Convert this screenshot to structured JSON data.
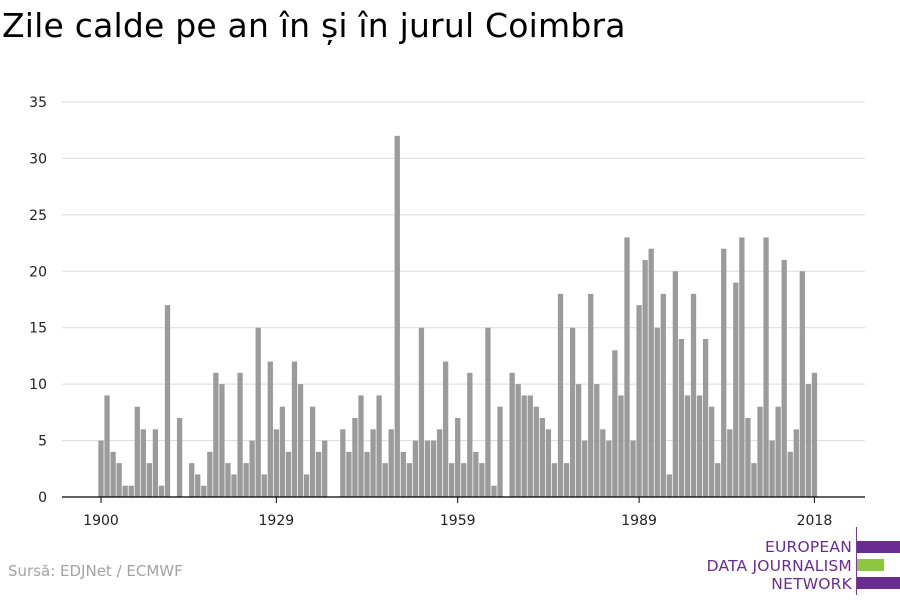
{
  "title": "Zile calde pe an în și în jurul Coimbra",
  "source": "Sursă: EDJNet / ECMWF",
  "logo": {
    "lines": [
      "EUROPEAN",
      "DATA JOURNALISM",
      "NETWORK"
    ],
    "colors": [
      "#6b2c91",
      "#8dc63f",
      "#6b2c91"
    ]
  },
  "chart_data": {
    "type": "bar",
    "title": "Zile calde pe an în și în jurul Coimbra",
    "xlabel": "",
    "ylabel": "",
    "x_start": 1900,
    "x_end": 2018,
    "xticks": [
      1900,
      1929,
      1959,
      1989,
      2018
    ],
    "yticks": [
      0,
      5,
      10,
      15,
      20,
      25,
      30,
      35
    ],
    "ylim": [
      0,
      35
    ],
    "grid": true,
    "bar_color": "#9b9b9b",
    "values": [
      5,
      9,
      4,
      3,
      1,
      1,
      8,
      6,
      3,
      6,
      1,
      17,
      0,
      7,
      0,
      3,
      2,
      1,
      4,
      11,
      10,
      3,
      2,
      11,
      3,
      5,
      15,
      2,
      12,
      6,
      8,
      4,
      12,
      10,
      2,
      8,
      4,
      5,
      0,
      0,
      6,
      4,
      7,
      9,
      4,
      6,
      9,
      3,
      6,
      32,
      4,
      3,
      5,
      15,
      5,
      5,
      6,
      12,
      3,
      7,
      3,
      11,
      4,
      3,
      15,
      1,
      8,
      0,
      11,
      10,
      9,
      9,
      8,
      7,
      6,
      3,
      18,
      3,
      15,
      10,
      5,
      18,
      10,
      6,
      5,
      13,
      9,
      23,
      5,
      17,
      21,
      22,
      15,
      18,
      2,
      20,
      14,
      9,
      18,
      9,
      14,
      8,
      3,
      22,
      6,
      19,
      23,
      7,
      3,
      8,
      23,
      5,
      8,
      21,
      4,
      6,
      20,
      10,
      11
    ]
  }
}
